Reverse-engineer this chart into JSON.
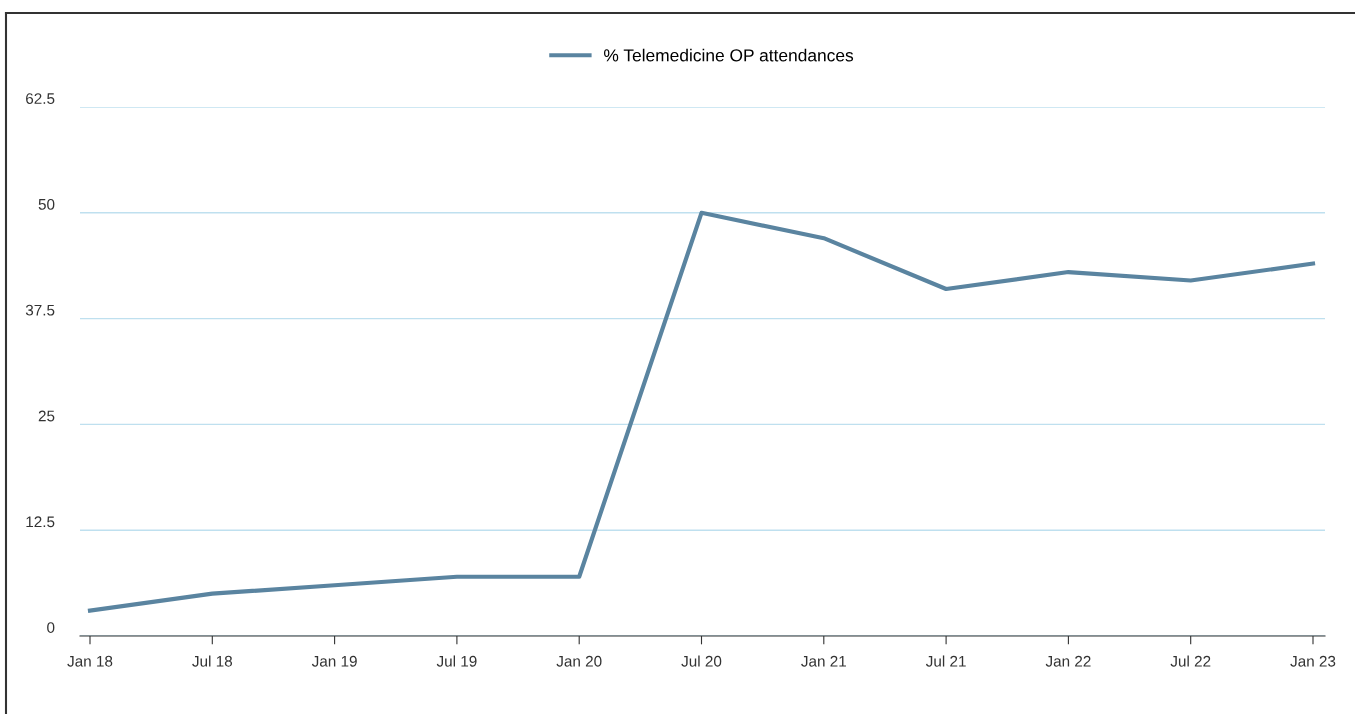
{
  "chart_data": {
    "type": "line",
    "categories": [
      "Jan 18",
      "Jul 18",
      "Jan 19",
      "Jul 19",
      "Jan 20",
      "Jul 20",
      "Jan 21",
      "Jul 21",
      "Jan 22",
      "Jul 22",
      "Jan 23"
    ],
    "series": [
      {
        "name": "% Telemedicine OP attendances",
        "color": "#5a84a0",
        "values": [
          3,
          5,
          6,
          7,
          7,
          50,
          47,
          41,
          43,
          42,
          44
        ]
      }
    ],
    "ylim": [
      0,
      62.5
    ],
    "yticks": [
      0,
      12.5,
      25,
      37.5,
      50,
      62.5
    ],
    "grid": "y",
    "legend": "top",
    "marker": "none",
    "line_style": "solid"
  }
}
